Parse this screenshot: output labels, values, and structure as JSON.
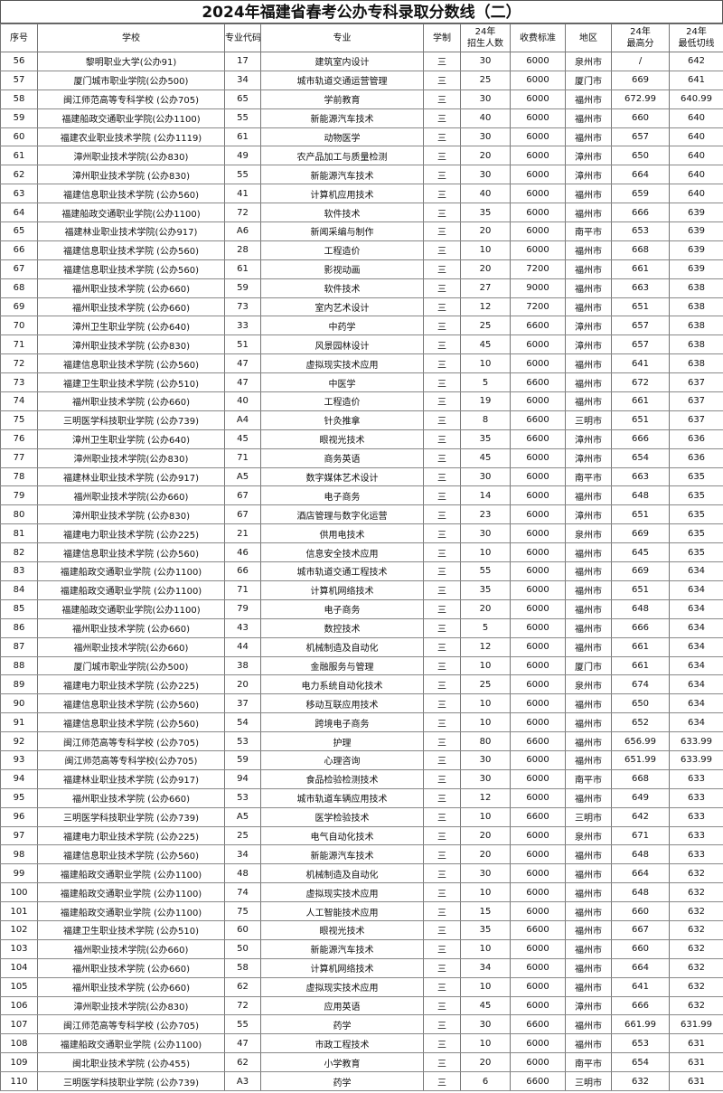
{
  "title": "2024年福建省春考公办专科录取分数线（二）",
  "headers": [
    "序号",
    "学校",
    "专业代码",
    "专业",
    "学制",
    "24年\n招生人数",
    "收费标准",
    "地区",
    "24年\n最高分",
    "24年\n最低切线"
  ],
  "rows": [
    [
      "56",
      "黎明职业大学(公办91)",
      "17",
      "建筑室内设计",
      "三",
      "30",
      "6000",
      "泉州市",
      "/",
      "642"
    ],
    [
      "57",
      "厦门城市职业学院(公办500)",
      "34",
      "城市轨道交通运营管理",
      "三",
      "25",
      "6000",
      "厦门市",
      "669",
      "641"
    ],
    [
      "58",
      "闽江师范高等专科学校 (公办705)",
      "65",
      "学前教育",
      "三",
      "30",
      "6000",
      "福州市",
      "672.99",
      "640.99"
    ],
    [
      "59",
      "福建船政交通职业学院(公办1100)",
      "55",
      "新能源汽车技术",
      "三",
      "40",
      "6000",
      "福州市",
      "660",
      "640"
    ],
    [
      "60",
      "福建农业职业技术学院 (公办1119)",
      "61",
      "动物医学",
      "三",
      "30",
      "6000",
      "福州市",
      "657",
      "640"
    ],
    [
      "61",
      "漳州职业技术学院(公办830)",
      "49",
      "农产品加工与质量检测",
      "三",
      "20",
      "6000",
      "漳州市",
      "650",
      "640"
    ],
    [
      "62",
      "漳州职业技术学院 (公办830)",
      "55",
      "新能源汽车技术",
      "三",
      "30",
      "6000",
      "漳州市",
      "664",
      "640"
    ],
    [
      "63",
      "福建信息职业技术学院 (公办560)",
      "41",
      "计算机应用技术",
      "三",
      "40",
      "6000",
      "福州市",
      "659",
      "640"
    ],
    [
      "64",
      "福建船政交通职业学院(公办1100)",
      "72",
      "软件技术",
      "三",
      "35",
      "6000",
      "福州市",
      "666",
      "639"
    ],
    [
      "65",
      "福建林业职业技术学院(公办917)",
      "A6",
      "新闻采编与制作",
      "三",
      "20",
      "6000",
      "南平市",
      "653",
      "639"
    ],
    [
      "66",
      "福建信息职业技术学院 (公办560)",
      "28",
      "工程造价",
      "三",
      "10",
      "6000",
      "福州市",
      "668",
      "639"
    ],
    [
      "67",
      "福建信息职业技术学院 (公办560)",
      "61",
      "影视动画",
      "三",
      "20",
      "7200",
      "福州市",
      "661",
      "639"
    ],
    [
      "68",
      "福州职业技术学院 (公办660)",
      "59",
      "软件技术",
      "三",
      "27",
      "9000",
      "福州市",
      "663",
      "638"
    ],
    [
      "69",
      "福州职业技术学院 (公办660)",
      "73",
      "室内艺术设计",
      "三",
      "12",
      "7200",
      "福州市",
      "651",
      "638"
    ],
    [
      "70",
      "漳州卫生职业学院 (公办640)",
      "33",
      "中药学",
      "三",
      "25",
      "6600",
      "漳州市",
      "657",
      "638"
    ],
    [
      "71",
      "漳州职业技术学院 (公办830)",
      "51",
      "风景园林设计",
      "三",
      "45",
      "6000",
      "漳州市",
      "657",
      "638"
    ],
    [
      "72",
      "福建信息职业技术学院 (公办560)",
      "47",
      "虚拟现实技术应用",
      "三",
      "10",
      "6000",
      "福州市",
      "641",
      "638"
    ],
    [
      "73",
      "福建卫生职业技术学院 (公办510)",
      "47",
      "中医学",
      "三",
      "5",
      "6600",
      "福州市",
      "672",
      "637"
    ],
    [
      "74",
      "福州职业技术学院 (公办660)",
      "40",
      "工程造价",
      "三",
      "19",
      "6000",
      "福州市",
      "661",
      "637"
    ],
    [
      "75",
      "三明医学科技职业学院 (公办739)",
      "A4",
      "针灸推拿",
      "三",
      "8",
      "6600",
      "三明市",
      "651",
      "637"
    ],
    [
      "76",
      "漳州卫生职业学院 (公办640)",
      "45",
      "眼视光技术",
      "三",
      "35",
      "6600",
      "漳州市",
      "666",
      "636"
    ],
    [
      "77",
      "漳州职业技术学院(公办830)",
      "71",
      "商务英语",
      "三",
      "45",
      "6000",
      "漳州市",
      "654",
      "636"
    ],
    [
      "78",
      "福建林业职业技术学院 (公办917)",
      "A5",
      "数字媒体艺术设计",
      "三",
      "30",
      "6000",
      "南平市",
      "663",
      "635"
    ],
    [
      "79",
      "福州职业技术学院(公办660)",
      "67",
      "电子商务",
      "三",
      "14",
      "6000",
      "福州市",
      "648",
      "635"
    ],
    [
      "80",
      "漳州职业技术学院 (公办830)",
      "67",
      "酒店管理与数字化运营",
      "三",
      "23",
      "6000",
      "漳州市",
      "651",
      "635"
    ],
    [
      "81",
      "福建电力职业技术学院 (公办225)",
      "21",
      "供用电技术",
      "三",
      "30",
      "6000",
      "泉州市",
      "669",
      "635"
    ],
    [
      "82",
      "福建信息职业技术学院 (公办560)",
      "46",
      "信息安全技术应用",
      "三",
      "10",
      "6000",
      "福州市",
      "645",
      "635"
    ],
    [
      "83",
      "福建船政交通职业学院 (公办1100)",
      "66",
      "城市轨道交通工程技术",
      "三",
      "55",
      "6000",
      "福州市",
      "669",
      "634"
    ],
    [
      "84",
      "福建船政交通职业学院 (公办1100)",
      "71",
      "计算机网络技术",
      "三",
      "35",
      "6000",
      "福州市",
      "651",
      "634"
    ],
    [
      "85",
      "福建船政交通职业学院(公办1100)",
      "79",
      "电子商务",
      "三",
      "20",
      "6000",
      "福州市",
      "648",
      "634"
    ],
    [
      "86",
      "福州职业技术学院 (公办660)",
      "43",
      "数控技术",
      "三",
      "5",
      "6000",
      "福州市",
      "666",
      "634"
    ],
    [
      "87",
      "福州职业技术学院(公办660)",
      "44",
      "机械制造及自动化",
      "三",
      "12",
      "6000",
      "福州市",
      "661",
      "634"
    ],
    [
      "88",
      "厦门城市职业学院(公办500)",
      "38",
      "金融服务与管理",
      "三",
      "10",
      "6000",
      "厦门市",
      "661",
      "634"
    ],
    [
      "89",
      "福建电力职业技术学院 (公办225)",
      "20",
      "电力系统自动化技术",
      "三",
      "25",
      "6000",
      "泉州市",
      "674",
      "634"
    ],
    [
      "90",
      "福建信息职业技术学院 (公办560)",
      "37",
      "移动互联应用技术",
      "三",
      "10",
      "6000",
      "福州市",
      "650",
      "634"
    ],
    [
      "91",
      "福建信息职业技术学院 (公办560)",
      "54",
      "跨境电子商务",
      "三",
      "10",
      "6000",
      "福州市",
      "652",
      "634"
    ],
    [
      "92",
      "闽江师范高等专科学校 (公办705)",
      "53",
      "护理",
      "三",
      "80",
      "6600",
      "福州市",
      "656.99",
      "633.99"
    ],
    [
      "93",
      "闽江师范高等专科学校(公办705)",
      "59",
      "心理咨询",
      "三",
      "30",
      "6000",
      "福州市",
      "651.99",
      "633.99"
    ],
    [
      "94",
      "福建林业职业技术学院 (公办917)",
      "94",
      "食品检验检测技术",
      "三",
      "30",
      "6000",
      "南平市",
      "668",
      "633"
    ],
    [
      "95",
      "福州职业技术学院 (公办660)",
      "53",
      "城市轨道车辆应用技术",
      "三",
      "12",
      "6000",
      "福州市",
      "649",
      "633"
    ],
    [
      "96",
      "三明医学科技职业学院 (公办739)",
      "A5",
      "医学检验技术",
      "三",
      "10",
      "6600",
      "三明市",
      "642",
      "633"
    ],
    [
      "97",
      "福建电力职业技术学院 (公办225)",
      "25",
      "电气自动化技术",
      "三",
      "20",
      "6000",
      "泉州市",
      "671",
      "633"
    ],
    [
      "98",
      "福建信息职业技术学院 (公办560)",
      "34",
      "新能源汽车技术",
      "三",
      "20",
      "6000",
      "福州市",
      "648",
      "633"
    ],
    [
      "99",
      "福建船政交通职业学院 (公办1100)",
      "48",
      "机械制造及自动化",
      "三",
      "30",
      "6000",
      "福州市",
      "664",
      "632"
    ],
    [
      "100",
      "福建船政交通职业学院 (公办1100)",
      "74",
      "虚拟现实技术应用",
      "三",
      "10",
      "6000",
      "福州市",
      "648",
      "632"
    ],
    [
      "101",
      "福建船政交通职业学院 (公办1100)",
      "75",
      "人工智能技术应用",
      "三",
      "15",
      "6000",
      "福州市",
      "660",
      "632"
    ],
    [
      "102",
      "福建卫生职业技术学院 (公办510)",
      "60",
      "眼视光技术",
      "三",
      "35",
      "6600",
      "福州市",
      "667",
      "632"
    ],
    [
      "103",
      "福州职业技术学院(公办660)",
      "50",
      "新能源汽车技术",
      "三",
      "10",
      "6000",
      "福州市",
      "660",
      "632"
    ],
    [
      "104",
      "福州职业技术学院 (公办660)",
      "58",
      "计算机网络技术",
      "三",
      "34",
      "6000",
      "福州市",
      "664",
      "632"
    ],
    [
      "105",
      "福州职业技术学院 (公办660)",
      "62",
      "虚拟现实技术应用",
      "三",
      "10",
      "6000",
      "福州市",
      "641",
      "632"
    ],
    [
      "106",
      "漳州职业技术学院(公办830)",
      "72",
      "应用英语",
      "三",
      "45",
      "6000",
      "漳州市",
      "666",
      "632"
    ],
    [
      "107",
      "闽江师范高等专科学校 (公办705)",
      "55",
      "药学",
      "三",
      "30",
      "6600",
      "福州市",
      "661.99",
      "631.99"
    ],
    [
      "108",
      "福建船政交通职业学院 (公办1100)",
      "47",
      "市政工程技术",
      "三",
      "10",
      "6000",
      "福州市",
      "653",
      "631"
    ],
    [
      "109",
      "闽北职业技术学院 (公办455)",
      "62",
      "小学教育",
      "三",
      "20",
      "6000",
      "南平市",
      "654",
      "631"
    ],
    [
      "110",
      "三明医学科技职业学院 (公办739)",
      "A3",
      "药学",
      "三",
      "6",
      "6600",
      "三明市",
      "632",
      "631"
    ]
  ]
}
